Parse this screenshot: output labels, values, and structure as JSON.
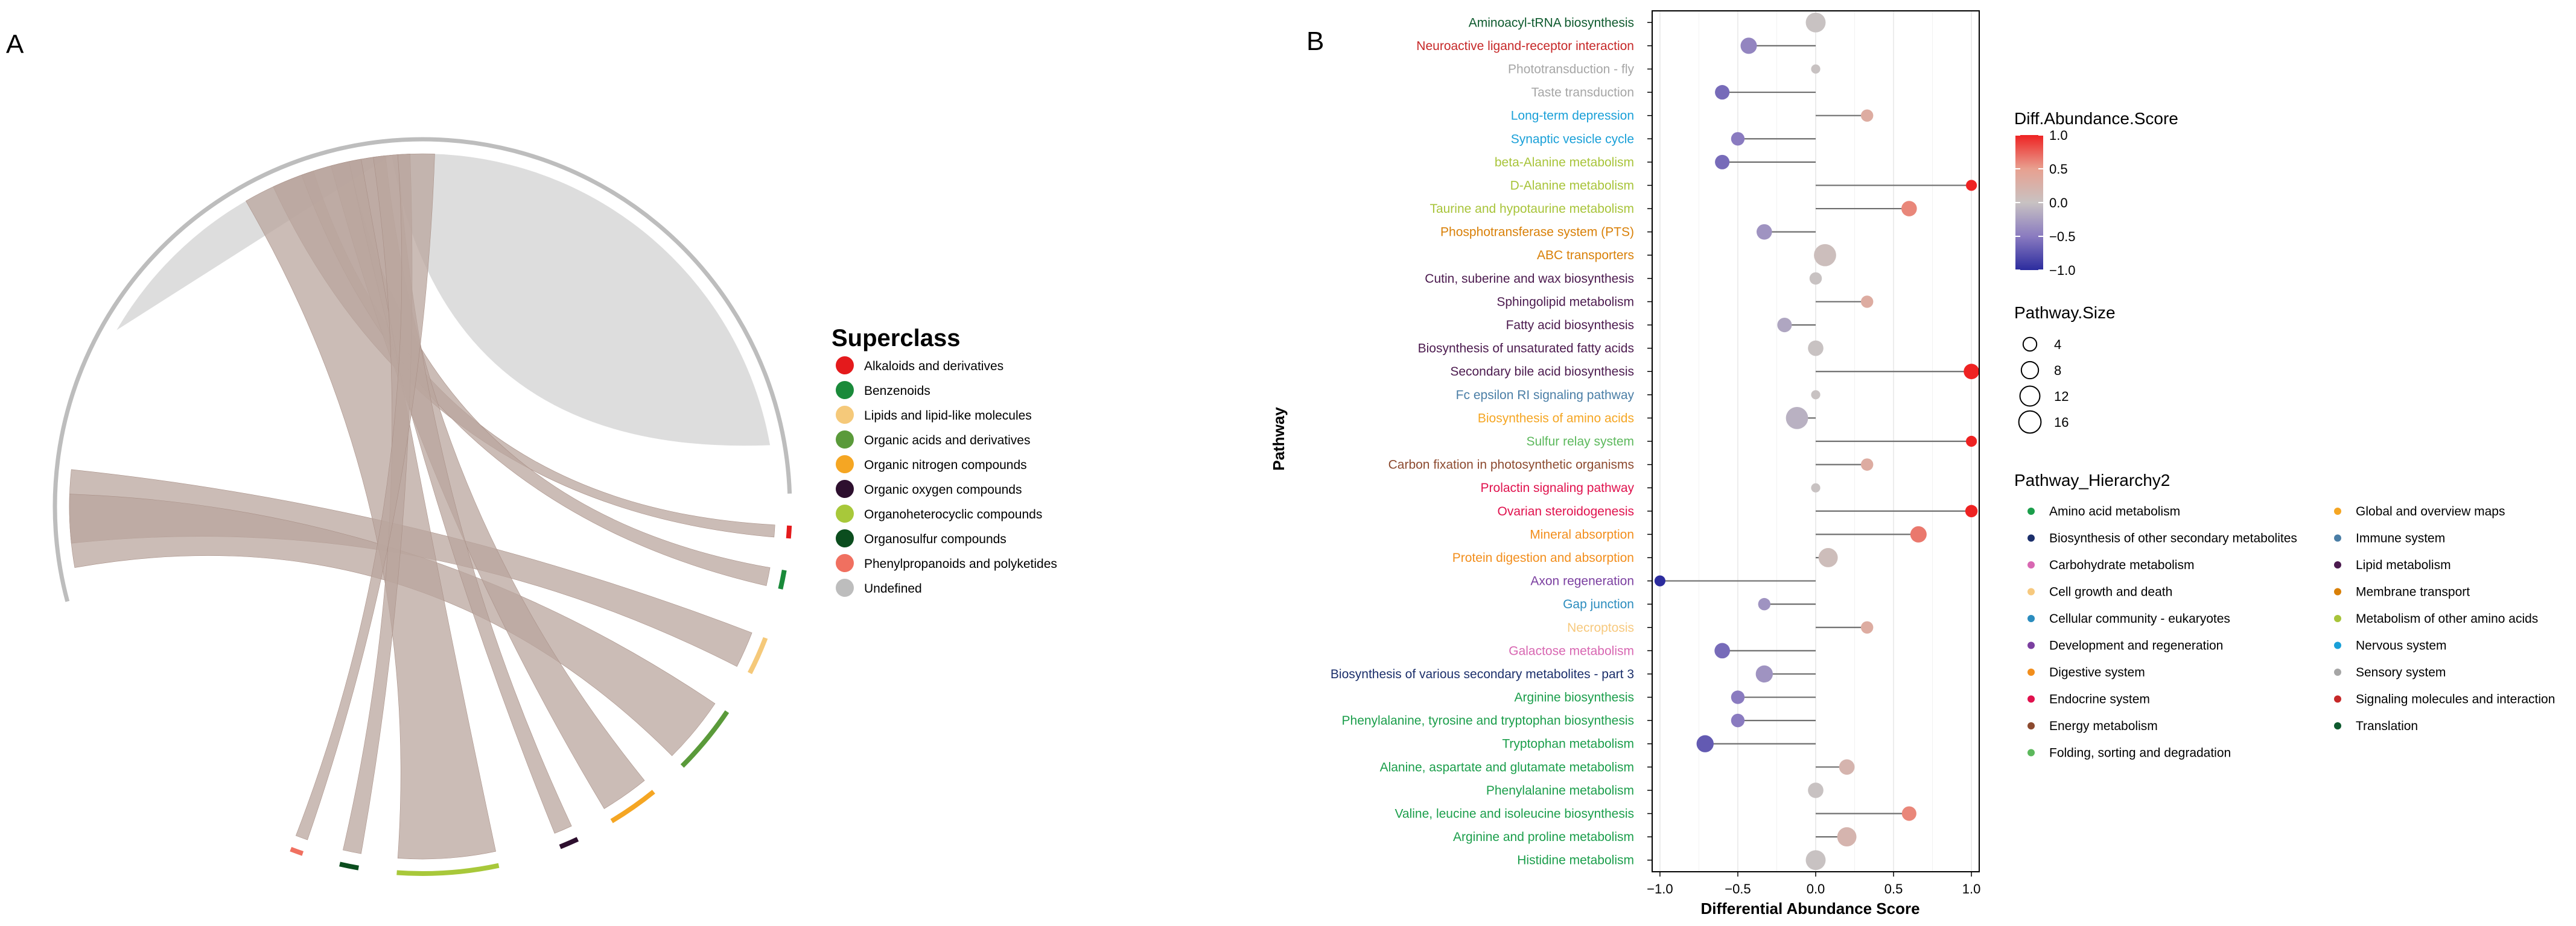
{
  "panel_a": {
    "label": "A",
    "legend_title": "Superclass",
    "superclasses": [
      {
        "name": "Alkaloids and derivatives",
        "color": "#E41A1C"
      },
      {
        "name": "Benzenoids",
        "color": "#1A8A3A"
      },
      {
        "name": "Lipids and lipid-like molecules",
        "color": "#F5C97A"
      },
      {
        "name": "Organic acids and derivatives",
        "color": "#5A9A3A"
      },
      {
        "name": "Organic nitrogen compounds",
        "color": "#F5A623"
      },
      {
        "name": "Organic oxygen compounds",
        "color": "#2D0F2E"
      },
      {
        "name": "Organoheterocyclic compounds",
        "color": "#A8C83A"
      },
      {
        "name": "Organosulfur compounds",
        "color": "#0B4D1E"
      },
      {
        "name": "Phenylpropanoids and polyketides",
        "color": "#F07060"
      },
      {
        "name": "Undefined",
        "color": "#BDBDBD"
      }
    ]
  },
  "panel_b": {
    "label": "B",
    "y_title": "Pathway",
    "legend_diff_title": "Diff.Abundance.Score",
    "legend_diff_ticks": [
      "1.0",
      "0.5",
      "0.0",
      "−0.5",
      "−1.0"
    ],
    "legend_size_title": "Pathway.Size",
    "legend_size_labels": [
      "4",
      "8",
      "12",
      "16"
    ],
    "legend_hier_title": "Pathway_Hierarchy2",
    "hierarchy": [
      {
        "name": "Amino acid metabolism",
        "color": "#1B9E4B"
      },
      {
        "name": "Biosynthesis of other secondary metabolites",
        "color": "#1B2F6B"
      },
      {
        "name": "Carbohydrate metabolism",
        "color": "#D867B2"
      },
      {
        "name": "Cell growth and death",
        "color": "#F7C97E"
      },
      {
        "name": "Cellular community - eukaryotes",
        "color": "#2B8CBE"
      },
      {
        "name": "Development and regeneration",
        "color": "#7B3FA0"
      },
      {
        "name": "Digestive system",
        "color": "#F28E1C"
      },
      {
        "name": "Endocrine system",
        "color": "#E0114D"
      },
      {
        "name": "Energy metabolism",
        "color": "#8C4A2F"
      },
      {
        "name": "Folding, sorting and degradation",
        "color": "#5CB85C"
      },
      {
        "name": "Global and overview maps",
        "color": "#F5A623"
      },
      {
        "name": "Immune system",
        "color": "#4A7EA6"
      },
      {
        "name": "Lipid metabolism",
        "color": "#4B1A4E"
      },
      {
        "name": "Membrane transport",
        "color": "#D98008"
      },
      {
        "name": "Metabolism of other amino acids",
        "color": "#A8C43A"
      },
      {
        "name": "Nervous system",
        "color": "#1AA0D8"
      },
      {
        "name": "Sensory system",
        "color": "#A6A6A6"
      },
      {
        "name": "Signaling molecules and interaction",
        "color": "#C62828"
      },
      {
        "name": "Translation",
        "color": "#0E5A2E"
      }
    ]
  },
  "chart_data": {
    "type": "scatter",
    "subtype": "lollipop",
    "xlabel": "Differential Abundance Score",
    "ylabel": "Pathway",
    "xlim": [
      -1.05,
      1.05
    ],
    "x_ticks": [
      "−1.0",
      "−0.5",
      "0.0",
      "0.5",
      "1.0"
    ],
    "colorbar_range": [
      -1.0,
      1.0
    ],
    "pathways": [
      {
        "name": "Aminoacyl-tRNA biosynthesis",
        "score": 0.0,
        "size": 12,
        "category": "Translation"
      },
      {
        "name": "Neuroactive ligand-receptor interaction",
        "score": -0.43,
        "size": 7,
        "category": "Signaling molecules and interaction"
      },
      {
        "name": "Phototransduction - fly",
        "score": 0.0,
        "size": 1,
        "category": "Sensory system"
      },
      {
        "name": "Taste transduction",
        "score": -0.6,
        "size": 5,
        "category": "Sensory system"
      },
      {
        "name": "Long-term depression",
        "score": 0.33,
        "size": 3,
        "category": "Nervous system"
      },
      {
        "name": "Synaptic vesicle cycle",
        "score": -0.5,
        "size": 4,
        "category": "Nervous system"
      },
      {
        "name": "beta-Alanine metabolism",
        "score": -0.6,
        "size": 5,
        "category": "Metabolism of other amino acids"
      },
      {
        "name": "D-Alanine metabolism",
        "score": 1.0,
        "size": 2,
        "category": "Metabolism of other amino acids"
      },
      {
        "name": "Taurine and hypotaurine metabolism",
        "score": 0.6,
        "size": 6,
        "category": "Metabolism of other amino acids"
      },
      {
        "name": "Phosphotransferase system (PTS)",
        "score": -0.33,
        "size": 6,
        "category": "Membrane transport"
      },
      {
        "name": "ABC transporters",
        "score": 0.06,
        "size": 16,
        "category": "Membrane transport"
      },
      {
        "name": "Cutin, suberine and wax biosynthesis",
        "score": 0.0,
        "size": 3,
        "category": "Lipid metabolism"
      },
      {
        "name": "Sphingolipid metabolism",
        "score": 0.33,
        "size": 3,
        "category": "Lipid metabolism"
      },
      {
        "name": "Fatty acid biosynthesis",
        "score": -0.2,
        "size": 5,
        "category": "Lipid metabolism"
      },
      {
        "name": "Biosynthesis of unsaturated fatty acids",
        "score": 0.0,
        "size": 6,
        "category": "Lipid metabolism"
      },
      {
        "name": "Secondary bile acid biosynthesis",
        "score": 1.0,
        "size": 6,
        "category": "Lipid metabolism"
      },
      {
        "name": "Fc epsilon RI signaling pathway",
        "score": 0.0,
        "size": 1,
        "category": "Immune system"
      },
      {
        "name": "Biosynthesis of amino acids",
        "score": -0.12,
        "size": 16,
        "category": "Global and overview maps"
      },
      {
        "name": "Sulfur relay system",
        "score": 1.0,
        "size": 2,
        "category": "Folding, sorting and degradation"
      },
      {
        "name": "Carbon fixation in photosynthetic organisms",
        "score": 0.33,
        "size": 3,
        "category": "Energy metabolism"
      },
      {
        "name": "Prolactin signaling pathway",
        "score": 0.0,
        "size": 1,
        "category": "Endocrine system"
      },
      {
        "name": "Ovarian steroidogenesis",
        "score": 1.0,
        "size": 3,
        "category": "Endocrine system"
      },
      {
        "name": "Mineral absorption",
        "score": 0.66,
        "size": 7,
        "category": "Digestive system"
      },
      {
        "name": "Protein digestion and absorption",
        "score": 0.08,
        "size": 11,
        "category": "Digestive system"
      },
      {
        "name": "Axon regeneration",
        "score": -1.0,
        "size": 2,
        "category": "Development and regeneration"
      },
      {
        "name": "Gap junction",
        "score": -0.33,
        "size": 3,
        "category": "Cellular community - eukaryotes"
      },
      {
        "name": "Necroptosis",
        "score": 0.33,
        "size": 3,
        "category": "Cell growth and death"
      },
      {
        "name": "Galactose metabolism",
        "score": -0.6,
        "size": 6,
        "category": "Carbohydrate metabolism"
      },
      {
        "name": "Biosynthesis of various secondary metabolites - part 3",
        "score": -0.33,
        "size": 8,
        "category": "Biosynthesis of other secondary metabolites"
      },
      {
        "name": "Arginine biosynthesis",
        "score": -0.5,
        "size": 4,
        "category": "Amino acid metabolism"
      },
      {
        "name": "Phenylalanine, tyrosine and tryptophan biosynthesis",
        "score": -0.5,
        "size": 4,
        "category": "Amino acid metabolism"
      },
      {
        "name": "Tryptophan metabolism",
        "score": -0.71,
        "size": 8,
        "category": "Amino acid metabolism"
      },
      {
        "name": "Alanine, aspartate and glutamate metabolism",
        "score": 0.2,
        "size": 6,
        "category": "Amino acid metabolism"
      },
      {
        "name": "Phenylalanine metabolism",
        "score": 0.0,
        "size": 6,
        "category": "Amino acid metabolism"
      },
      {
        "name": "Valine, leucine and isoleucine biosynthesis",
        "score": 0.6,
        "size": 5,
        "category": "Amino acid metabolism"
      },
      {
        "name": "Arginine and proline metabolism",
        "score": 0.2,
        "size": 11,
        "category": "Amino acid metabolism"
      },
      {
        "name": "Histidine metabolism",
        "score": 0.0,
        "size": 12,
        "category": "Amino acid metabolism"
      }
    ]
  }
}
